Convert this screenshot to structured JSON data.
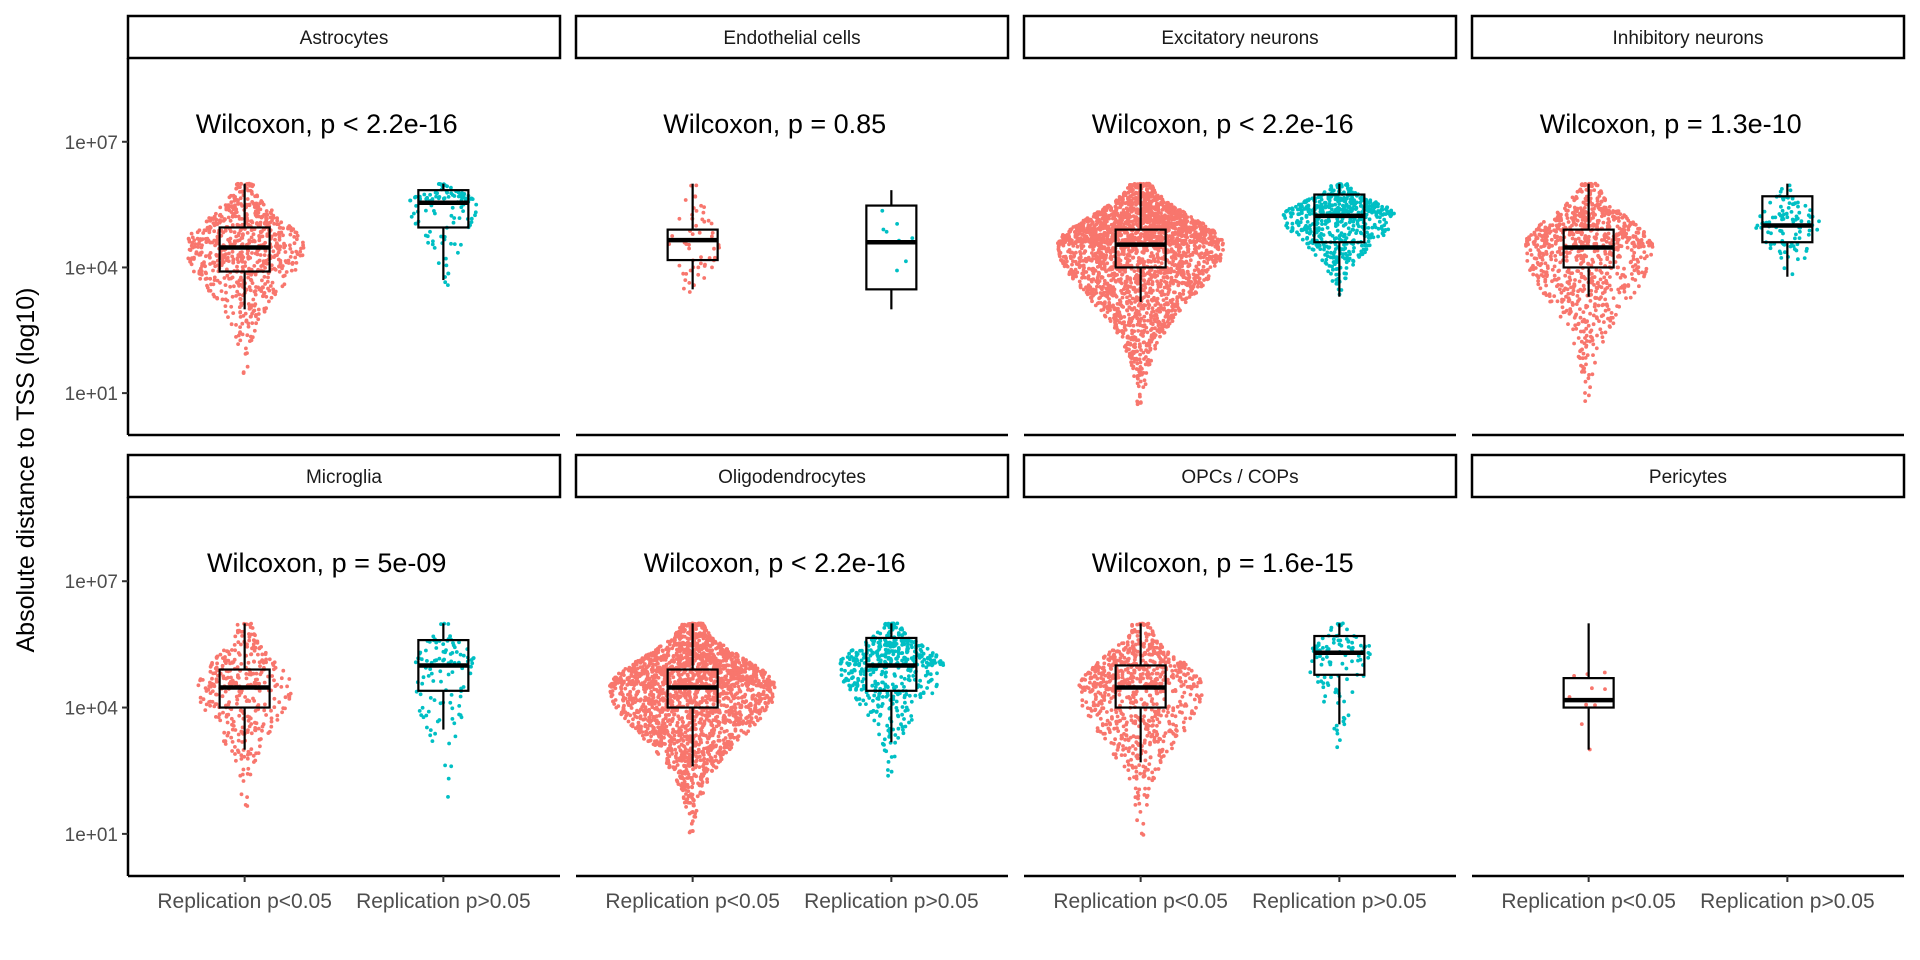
{
  "chart_data": {
    "type": "beeswarm-boxplot",
    "ylabel": "Absolute distance to TSS (log10)",
    "yscale": "log10",
    "ylim": [
      1,
      1000000000.0
    ],
    "yticks": [
      {
        "value": 10,
        "label": "1e+01"
      },
      {
        "value": 10000,
        "label": "1e+04"
      },
      {
        "value": 10000000,
        "label": "1e+07"
      }
    ],
    "categories": [
      "Replication p<0.05",
      "Replication p>0.05"
    ],
    "colors": {
      "Replication p<0.05": "#F8766D",
      "Replication p>0.05": "#00BFC4"
    },
    "panels": [
      {
        "name": "Astrocytes",
        "test": "Wilcoxon, p < 2.2e-16",
        "groups": [
          {
            "category": "Replication p<0.05",
            "n": 700,
            "min": 30,
            "q1": 8000,
            "median": 30000,
            "q3": 90000,
            "max": 1000000,
            "whisker_low": 1000,
            "whisker_high": 1000000
          },
          {
            "category": "Replication p>0.05",
            "n": 120,
            "min": 1000,
            "q1": 90000,
            "median": 350000,
            "q3": 700000,
            "max": 1000000,
            "whisker_low": 5000,
            "whisker_high": 1000000
          }
        ]
      },
      {
        "name": "Endothelial cells",
        "test": "Wilcoxon, p = 0.85",
        "groups": [
          {
            "category": "Replication p<0.05",
            "n": 55,
            "min": 300,
            "q1": 15000,
            "median": 45000,
            "q3": 80000,
            "max": 1000000,
            "whisker_low": 3000,
            "whisker_high": 1000000
          },
          {
            "category": "Replication p>0.05",
            "n": 8,
            "min": 1000,
            "q1": 3000,
            "median": 40000,
            "q3": 300000,
            "max": 700000,
            "whisker_low": 1000,
            "whisker_high": 700000
          }
        ]
      },
      {
        "name": "Excitatory neurons",
        "test": "Wilcoxon, p < 2.2e-16",
        "groups": [
          {
            "category": "Replication p<0.05",
            "n": 2500,
            "min": 5,
            "q1": 10000,
            "median": 35000,
            "q3": 80000,
            "max": 1000000,
            "whisker_low": 1500,
            "whisker_high": 1000000
          },
          {
            "category": "Replication p>0.05",
            "n": 600,
            "min": 1500,
            "q1": 40000,
            "median": 170000,
            "q3": 550000,
            "max": 1000000,
            "whisker_low": 2000,
            "whisker_high": 1000000
          }
        ]
      },
      {
        "name": "Inhibitory neurons",
        "test": "Wilcoxon, p = 1.3e-10",
        "groups": [
          {
            "category": "Replication p<0.05",
            "n": 900,
            "min": 5,
            "q1": 10000,
            "median": 30000,
            "q3": 80000,
            "max": 1000000,
            "whisker_low": 2000,
            "whisker_high": 1000000
          },
          {
            "category": "Replication p>0.05",
            "n": 100,
            "min": 1200,
            "q1": 40000,
            "median": 100000,
            "q3": 500000,
            "max": 1000000,
            "whisker_low": 6000,
            "whisker_high": 1000000
          }
        ]
      },
      {
        "name": "Microglia",
        "test": "Wilcoxon, p = 5e-09",
        "groups": [
          {
            "category": "Replication p<0.05",
            "n": 350,
            "min": 40,
            "q1": 10000,
            "median": 30000,
            "q3": 80000,
            "max": 1000000,
            "whisker_low": 1000,
            "whisker_high": 1000000
          },
          {
            "category": "Replication p>0.05",
            "n": 110,
            "min": 10,
            "q1": 25000,
            "median": 100000,
            "q3": 400000,
            "max": 1000000,
            "whisker_low": 3000,
            "whisker_high": 1000000
          }
        ]
      },
      {
        "name": "Oligodendrocytes",
        "test": "Wilcoxon, p < 2.2e-16",
        "groups": [
          {
            "category": "Replication p<0.05",
            "n": 2200,
            "min": 10,
            "q1": 10000,
            "median": 30000,
            "q3": 80000,
            "max": 1000000,
            "whisker_low": 400,
            "whisker_high": 1000000
          },
          {
            "category": "Replication p>0.05",
            "n": 500,
            "min": 200,
            "q1": 25000,
            "median": 100000,
            "q3": 450000,
            "max": 1000000,
            "whisker_low": 1500,
            "whisker_high": 1000000
          }
        ]
      },
      {
        "name": "OPCs / COPs",
        "test": "Wilcoxon, p = 1.6e-15",
        "groups": [
          {
            "category": "Replication p<0.05",
            "n": 800,
            "min": 8,
            "q1": 10000,
            "median": 30000,
            "q3": 100000,
            "max": 1000000,
            "whisker_low": 500,
            "whisker_high": 1000000
          },
          {
            "category": "Replication p>0.05",
            "n": 110,
            "min": 500,
            "q1": 60000,
            "median": 200000,
            "q3": 500000,
            "max": 1000000,
            "whisker_low": 4000,
            "whisker_high": 1000000
          }
        ]
      },
      {
        "name": "Pericytes",
        "test": "",
        "groups": [
          {
            "category": "Replication p<0.05",
            "n": 12,
            "min": 50,
            "q1": 10000,
            "median": 15000,
            "q3": 50000,
            "max": 1000000,
            "whisker_low": 1000,
            "whisker_high": 1000000
          }
        ]
      }
    ]
  }
}
